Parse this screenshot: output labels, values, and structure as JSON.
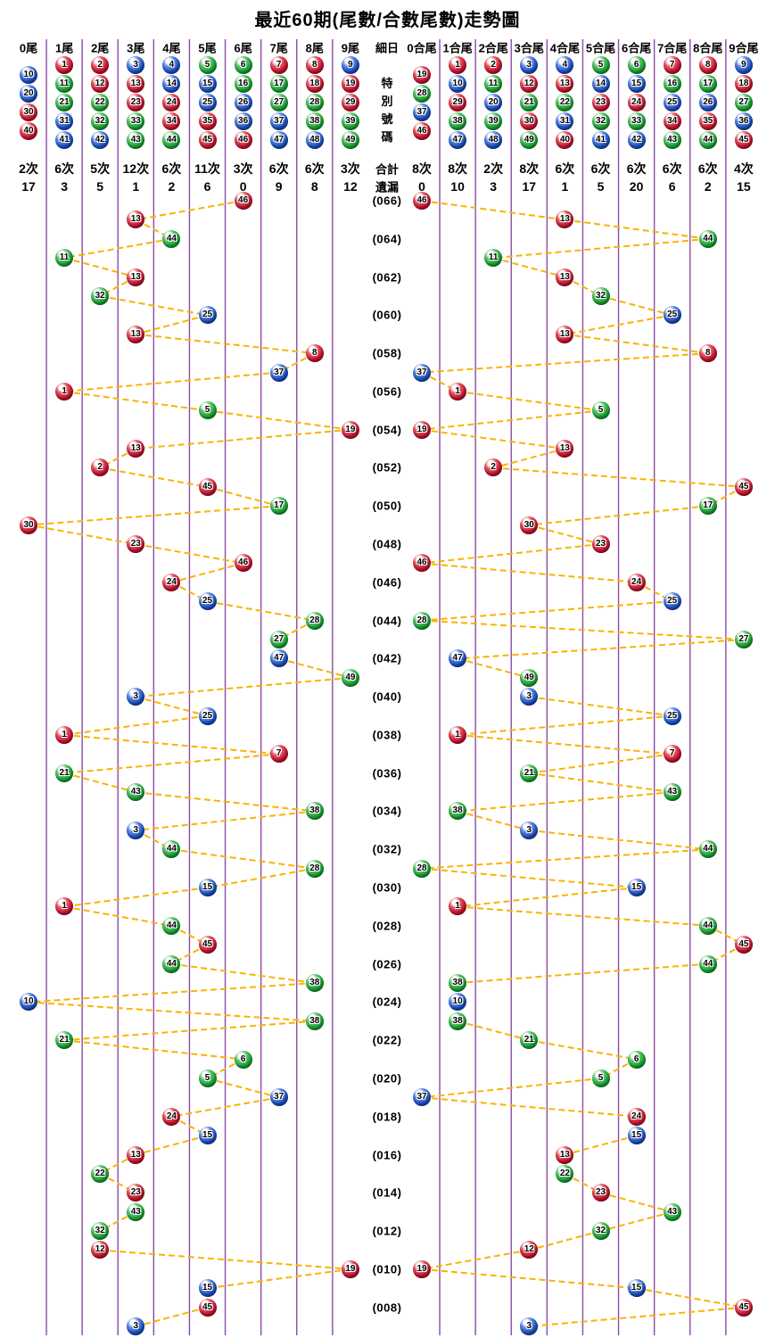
{
  "title": "最近60期(尾數/合數尾數)走勢圖",
  "middle": {
    "header": "細日",
    "special_label": "特別號碼",
    "total_label": "合計",
    "miss_label": "遺漏"
  },
  "left_columns": [
    {
      "label": "0尾",
      "balls": [
        10,
        20,
        30,
        40
      ],
      "count": "2次",
      "miss": "17"
    },
    {
      "label": "1尾",
      "balls": [
        1,
        11,
        21,
        31,
        41
      ],
      "count": "6次",
      "miss": "3"
    },
    {
      "label": "2尾",
      "balls": [
        2,
        12,
        22,
        32,
        42
      ],
      "count": "5次",
      "miss": "5"
    },
    {
      "label": "3尾",
      "balls": [
        3,
        13,
        23,
        33,
        43
      ],
      "count": "12次",
      "miss": "1"
    },
    {
      "label": "4尾",
      "balls": [
        4,
        14,
        24,
        34,
        44
      ],
      "count": "6次",
      "miss": "2"
    },
    {
      "label": "5尾",
      "balls": [
        5,
        15,
        25,
        35,
        45
      ],
      "count": "11次",
      "miss": "6"
    },
    {
      "label": "6尾",
      "balls": [
        6,
        16,
        26,
        36,
        46
      ],
      "count": "3次",
      "miss": "0"
    },
    {
      "label": "7尾",
      "balls": [
        7,
        17,
        27,
        37,
        47
      ],
      "count": "6次",
      "miss": "9"
    },
    {
      "label": "8尾",
      "balls": [
        8,
        18,
        28,
        38,
        48
      ],
      "count": "6次",
      "miss": "8"
    },
    {
      "label": "9尾",
      "balls": [
        9,
        19,
        29,
        39,
        49
      ],
      "count": "3次",
      "miss": "12"
    }
  ],
  "right_columns": [
    {
      "label": "0合尾",
      "balls": [
        19,
        28,
        37,
        46
      ],
      "count": "8次",
      "miss": "0"
    },
    {
      "label": "1合尾",
      "balls": [
        1,
        10,
        29,
        38,
        47
      ],
      "count": "8次",
      "miss": "10"
    },
    {
      "label": "2合尾",
      "balls": [
        2,
        11,
        20,
        39,
        48
      ],
      "count": "2次",
      "miss": "3"
    },
    {
      "label": "3合尾",
      "balls": [
        3,
        12,
        21,
        30,
        49
      ],
      "count": "8次",
      "miss": "17"
    },
    {
      "label": "4合尾",
      "balls": [
        4,
        13,
        22,
        31,
        40
      ],
      "count": "6次",
      "miss": "1"
    },
    {
      "label": "5合尾",
      "balls": [
        5,
        14,
        23,
        32,
        41
      ],
      "count": "6次",
      "miss": "5"
    },
    {
      "label": "6合尾",
      "balls": [
        6,
        15,
        24,
        33,
        42
      ],
      "count": "6次",
      "miss": "20"
    },
    {
      "label": "7合尾",
      "balls": [
        7,
        16,
        25,
        34,
        43
      ],
      "count": "6次",
      "miss": "6"
    },
    {
      "label": "8合尾",
      "balls": [
        8,
        17,
        26,
        35,
        44
      ],
      "count": "6次",
      "miss": "2"
    },
    {
      "label": "9合尾",
      "balls": [
        9,
        18,
        27,
        36,
        45
      ],
      "count": "4次",
      "miss": "15"
    }
  ],
  "chart_data": {
    "type": "scatter",
    "description": "60 special numbers; left block plots number by last digit (0尾-9尾), right block plots same number by tail of digit sum (0合尾-9合尾); consecutive draws joined by dashed lines; newest period at top",
    "period_labels": [
      "(066)",
      "(064)",
      "(062)",
      "(060)",
      "(058)",
      "(056)",
      "(054)",
      "(052)",
      "(050)",
      "(048)",
      "(046)",
      "(044)",
      "(042)",
      "(040)",
      "(038)",
      "(036)",
      "(034)",
      "(032)",
      "(030)",
      "(028)",
      "(026)",
      "(024)",
      "(022)",
      "(020)",
      "(018)",
      "(016)",
      "(014)",
      "(012)",
      "(010)",
      "(008)"
    ],
    "draws": [
      46,
      13,
      44,
      11,
      13,
      32,
      25,
      13,
      8,
      37,
      1,
      5,
      19,
      13,
      2,
      45,
      17,
      30,
      23,
      46,
      24,
      25,
      28,
      27,
      47,
      49,
      3,
      25,
      1,
      7,
      21,
      43,
      38,
      3,
      44,
      28,
      15,
      1,
      44,
      45,
      44,
      38,
      10,
      38,
      21,
      6,
      5,
      37,
      24,
      15,
      13,
      22,
      23,
      43,
      32,
      12,
      19,
      15,
      45,
      3
    ]
  },
  "ball_colors": {
    "red": [
      1,
      2,
      7,
      8,
      12,
      13,
      18,
      19,
      23,
      24,
      29,
      30,
      34,
      35,
      40,
      45,
      46
    ],
    "blue": [
      3,
      4,
      9,
      10,
      14,
      15,
      20,
      25,
      26,
      31,
      36,
      37,
      41,
      42,
      47,
      48
    ],
    "green": [
      5,
      6,
      11,
      16,
      17,
      21,
      22,
      27,
      28,
      32,
      33,
      38,
      39,
      43,
      44,
      49
    ]
  },
  "colors": {
    "grid": "#8C4BA4",
    "connector": "#F9B303",
    "red": "#C41230",
    "red_hi": "#E8565F",
    "red_dk": "#7C0814",
    "blue": "#1A4FBE",
    "blue_hi": "#5E8BE8",
    "blue_dk": "#0B2A7C",
    "green": "#17A032",
    "green_hi": "#5CC76B",
    "green_dk": "#0A6B1E"
  }
}
